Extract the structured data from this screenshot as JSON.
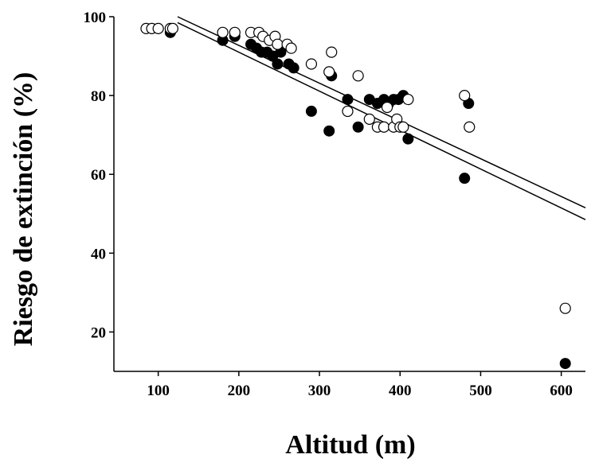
{
  "chart_data": {
    "type": "scatter",
    "xlabel": "Altitud (m)",
    "ylabel": "Riesgo de extinción (%)",
    "xlim": [
      45,
      630
    ],
    "ylim": [
      10,
      100
    ],
    "xticks": [
      100,
      200,
      300,
      400,
      500,
      600
    ],
    "yticks": [
      20,
      40,
      60,
      80,
      100
    ],
    "series": [
      {
        "marker": "filled",
        "color": "#000000",
        "points": [
          [
            115,
            96
          ],
          [
            180,
            94
          ],
          [
            195,
            95
          ],
          [
            215,
            93
          ],
          [
            222,
            92
          ],
          [
            228,
            91
          ],
          [
            235,
            91
          ],
          [
            242,
            90
          ],
          [
            248,
            88
          ],
          [
            252,
            91
          ],
          [
            262,
            88
          ],
          [
            268,
            87
          ],
          [
            290,
            76
          ],
          [
            312,
            71
          ],
          [
            315,
            85
          ],
          [
            335,
            79
          ],
          [
            348,
            72
          ],
          [
            362,
            79
          ],
          [
            372,
            78
          ],
          [
            380,
            79
          ],
          [
            386,
            78
          ],
          [
            392,
            79
          ],
          [
            398,
            79
          ],
          [
            404,
            80
          ],
          [
            410,
            69
          ],
          [
            480,
            59
          ],
          [
            485,
            78
          ],
          [
            605,
            12
          ]
        ]
      },
      {
        "marker": "open",
        "color": "#ffffff",
        "points": [
          [
            85,
            97
          ],
          [
            92,
            97
          ],
          [
            100,
            97
          ],
          [
            115,
            97
          ],
          [
            118,
            97
          ],
          [
            180,
            96
          ],
          [
            195,
            96
          ],
          [
            215,
            96
          ],
          [
            225,
            96
          ],
          [
            230,
            95
          ],
          [
            238,
            94
          ],
          [
            245,
            95
          ],
          [
            248,
            93
          ],
          [
            260,
            93
          ],
          [
            265,
            92
          ],
          [
            290,
            88
          ],
          [
            312,
            86
          ],
          [
            315,
            91
          ],
          [
            335,
            76
          ],
          [
            348,
            85
          ],
          [
            362,
            74
          ],
          [
            372,
            72
          ],
          [
            380,
            72
          ],
          [
            384,
            77
          ],
          [
            392,
            72
          ],
          [
            396,
            74
          ],
          [
            400,
            72
          ],
          [
            404,
            72
          ],
          [
            410,
            79
          ],
          [
            480,
            80
          ],
          [
            486,
            72
          ],
          [
            605,
            26
          ]
        ]
      }
    ],
    "fit_lines": [
      {
        "x": [
          124,
          630
        ],
        "y": [
          100,
          51.5
        ]
      },
      {
        "x": [
          124,
          630
        ],
        "y": [
          98.5,
          48.5
        ]
      }
    ]
  }
}
